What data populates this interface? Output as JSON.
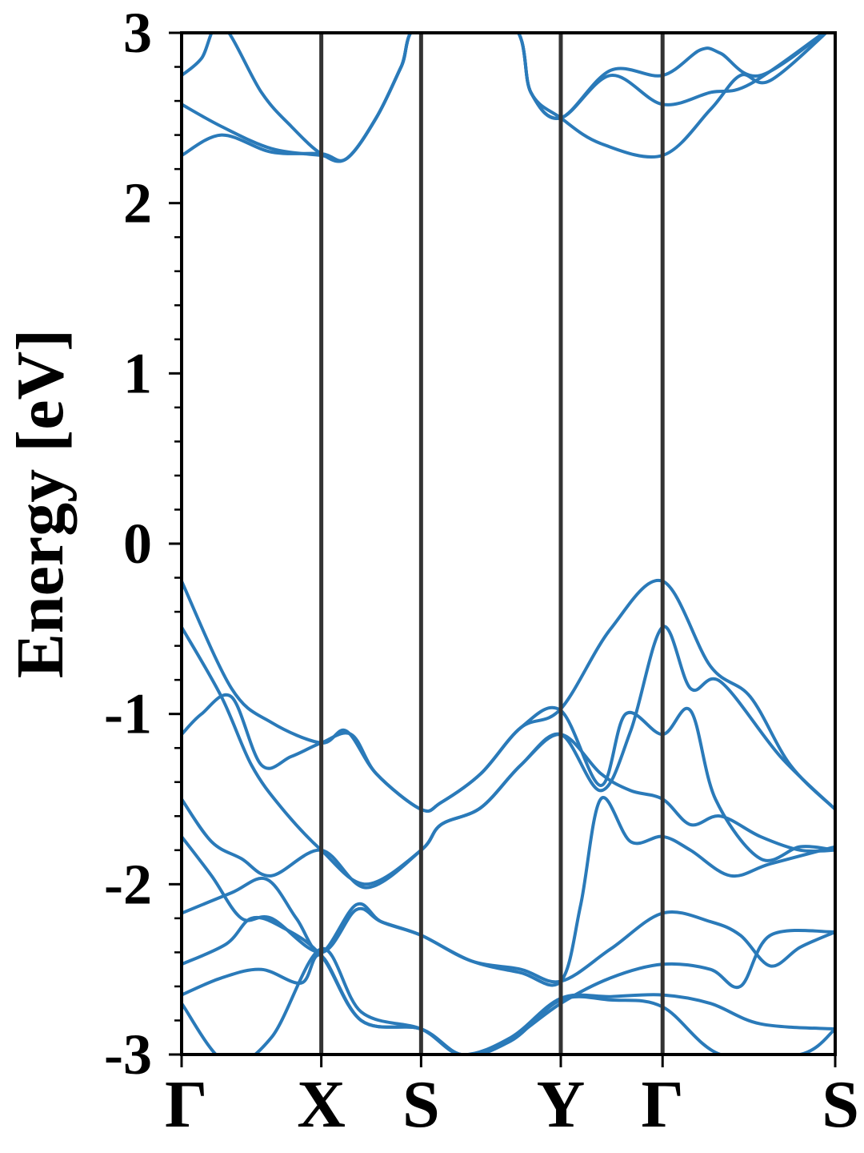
{
  "chart_data": {
    "type": "line",
    "title": "",
    "xlabel": "",
    "ylabel": "Energy [eV]",
    "ylim": [
      -3,
      3
    ],
    "yticks": [
      -3,
      -2,
      -1,
      0,
      1,
      2,
      3
    ],
    "ytick_labels": [
      "-3",
      "-2",
      "-1",
      "0",
      "1",
      "2",
      "3"
    ],
    "yminor_step": 0.2,
    "xlim": [
      0,
      6.55
    ],
    "kpoints": [
      {
        "label": "Γ",
        "x": 0
      },
      {
        "label": "X",
        "x": 1.4
      },
      {
        "label": "S",
        "x": 2.4
      },
      {
        "label": "Y",
        "x": 3.8
      },
      {
        "label": "Γ",
        "x": 4.82
      },
      {
        "label": "S",
        "x": 6.55
      }
    ],
    "grid": false,
    "legend": "none",
    "colors": {
      "bands": "#2a7ab9",
      "kpath_lines": "#333333",
      "axes": "#000000"
    },
    "series": [
      {
        "points": [
          [
            0,
            -0.22
          ],
          [
            0.5,
            -0.85
          ],
          [
            0.9,
            -1.05
          ],
          [
            1.4,
            -1.17
          ],
          [
            1.65,
            -1.1
          ],
          [
            1.95,
            -1.35
          ],
          [
            2.4,
            -1.56
          ],
          [
            2.6,
            -1.52
          ],
          [
            3.0,
            -1.35
          ],
          [
            3.4,
            -1.08
          ],
          [
            3.8,
            -0.97
          ],
          [
            4.3,
            -0.5
          ],
          [
            4.82,
            -0.22
          ],
          [
            5.3,
            -0.72
          ],
          [
            5.7,
            -0.9
          ],
          [
            6.1,
            -1.3
          ],
          [
            6.55,
            -1.56
          ]
        ]
      },
      {
        "points": [
          [
            0,
            -0.49
          ],
          [
            0.4,
            -0.9
          ],
          [
            0.7,
            -1.3
          ],
          [
            1.0,
            -1.55
          ],
          [
            1.4,
            -1.8
          ],
          [
            1.85,
            -2.0
          ],
          [
            2.4,
            -1.8
          ],
          [
            2.6,
            -1.65
          ],
          [
            3.0,
            -1.55
          ],
          [
            3.4,
            -1.3
          ],
          [
            3.8,
            -1.12
          ],
          [
            4.2,
            -1.45
          ],
          [
            4.5,
            -1.1
          ],
          [
            4.82,
            -0.49
          ],
          [
            5.1,
            -0.85
          ],
          [
            5.4,
            -0.81
          ],
          [
            6.0,
            -1.25
          ],
          [
            6.55,
            -1.56
          ]
        ]
      },
      {
        "points": [
          [
            0,
            -1.12
          ],
          [
            0.2,
            -1.0
          ],
          [
            0.5,
            -0.9
          ],
          [
            0.8,
            -1.3
          ],
          [
            1.1,
            -1.25
          ],
          [
            1.4,
            -1.17
          ],
          [
            1.7,
            -1.12
          ],
          [
            1.95,
            -1.35
          ],
          [
            2.4,
            -1.56
          ],
          [
            2.6,
            -1.52
          ],
          [
            3.0,
            -1.35
          ],
          [
            3.4,
            -1.08
          ],
          [
            3.8,
            -0.98
          ],
          [
            4.2,
            -1.42
          ],
          [
            4.45,
            -1.0
          ],
          [
            4.82,
            -1.12
          ],
          [
            5.1,
            -0.98
          ],
          [
            5.35,
            -1.5
          ],
          [
            5.8,
            -1.85
          ],
          [
            6.2,
            -1.78
          ],
          [
            6.55,
            -1.8
          ]
        ]
      },
      {
        "points": [
          [
            0,
            -1.5
          ],
          [
            0.3,
            -1.75
          ],
          [
            0.6,
            -1.85
          ],
          [
            0.9,
            -1.95
          ],
          [
            1.4,
            -1.8
          ],
          [
            1.85,
            -2.02
          ],
          [
            2.4,
            -1.8
          ],
          [
            2.6,
            -1.65
          ],
          [
            3.0,
            -1.55
          ],
          [
            3.4,
            -1.3
          ],
          [
            3.8,
            -1.12
          ],
          [
            4.2,
            -1.35
          ],
          [
            4.5,
            -1.45
          ],
          [
            4.82,
            -1.5
          ],
          [
            5.1,
            -1.65
          ],
          [
            5.4,
            -1.6
          ],
          [
            5.8,
            -1.72
          ],
          [
            6.2,
            -1.8
          ],
          [
            6.55,
            -1.8
          ]
        ]
      },
      {
        "points": [
          [
            0,
            -1.72
          ],
          [
            0.3,
            -1.95
          ],
          [
            0.6,
            -2.2
          ],
          [
            0.9,
            -2.2
          ],
          [
            1.4,
            -2.4
          ],
          [
            1.75,
            -2.15
          ],
          [
            2.0,
            -2.22
          ],
          [
            2.4,
            -2.3
          ],
          [
            2.9,
            -2.45
          ],
          [
            3.4,
            -2.52
          ],
          [
            3.8,
            -2.57
          ],
          [
            4.0,
            -2.12
          ],
          [
            4.2,
            -1.5
          ],
          [
            4.5,
            -1.75
          ],
          [
            4.82,
            -1.72
          ],
          [
            5.1,
            -1.8
          ],
          [
            5.5,
            -1.95
          ],
          [
            5.9,
            -1.88
          ],
          [
            6.55,
            -1.78
          ]
        ]
      },
      {
        "points": [
          [
            0,
            -2.17
          ],
          [
            0.5,
            -2.05
          ],
          [
            0.85,
            -1.97
          ],
          [
            1.15,
            -2.2
          ],
          [
            1.4,
            -2.4
          ],
          [
            1.75,
            -2.12
          ],
          [
            2.0,
            -2.22
          ],
          [
            2.4,
            -2.3
          ],
          [
            2.9,
            -2.45
          ],
          [
            3.4,
            -2.5
          ],
          [
            3.8,
            -2.57
          ],
          [
            4.3,
            -2.38
          ],
          [
            4.82,
            -2.17
          ],
          [
            5.3,
            -2.22
          ],
          [
            5.6,
            -2.3
          ],
          [
            5.9,
            -2.48
          ],
          [
            6.2,
            -2.37
          ],
          [
            6.55,
            -2.28
          ]
        ]
      },
      {
        "points": [
          [
            0,
            -2.47
          ],
          [
            0.45,
            -2.35
          ],
          [
            0.7,
            -2.2
          ],
          [
            1.0,
            -2.25
          ],
          [
            1.4,
            -2.42
          ],
          [
            1.8,
            -2.8
          ],
          [
            2.4,
            -2.85
          ],
          [
            2.8,
            -3.0
          ],
          [
            3.2,
            -2.95
          ],
          [
            3.8,
            -2.7
          ],
          [
            4.3,
            -2.55
          ],
          [
            4.82,
            -2.47
          ],
          [
            5.3,
            -2.5
          ],
          [
            5.6,
            -2.6
          ],
          [
            5.9,
            -2.3
          ],
          [
            6.55,
            -2.28
          ]
        ]
      },
      {
        "points": [
          [
            0,
            -2.65
          ],
          [
            0.4,
            -2.55
          ],
          [
            0.8,
            -2.5
          ],
          [
            1.2,
            -2.58
          ],
          [
            1.4,
            -2.42
          ],
          [
            1.8,
            -2.8
          ],
          [
            2.4,
            -2.85
          ],
          [
            2.8,
            -3.0
          ],
          [
            3.3,
            -2.9
          ],
          [
            3.8,
            -2.67
          ],
          [
            4.3,
            -2.66
          ],
          [
            4.82,
            -2.65
          ],
          [
            5.3,
            -2.7
          ],
          [
            5.8,
            -2.82
          ],
          [
            6.55,
            -2.85
          ]
        ]
      },
      {
        "points": [
          [
            0,
            -2.7
          ],
          [
            0.45,
            -3.05
          ],
          [
            0.9,
            -2.9
          ],
          [
            1.4,
            -2.38
          ],
          [
            1.8,
            -2.75
          ],
          [
            2.4,
            -2.85
          ],
          [
            2.8,
            -3.0
          ],
          [
            3.3,
            -2.92
          ],
          [
            3.8,
            -2.68
          ],
          [
            4.3,
            -2.68
          ],
          [
            4.82,
            -2.72
          ],
          [
            5.4,
            -3.0
          ],
          [
            6.2,
            -3.0
          ],
          [
            6.55,
            -2.85
          ]
        ]
      },
      {
        "points": [
          [
            0,
            2.28
          ],
          [
            0.4,
            2.4
          ],
          [
            0.9,
            2.3
          ],
          [
            1.4,
            2.29
          ],
          [
            1.65,
            2.26
          ],
          [
            1.95,
            2.5
          ],
          [
            2.2,
            2.8
          ],
          [
            2.4,
            3.05
          ],
          [
            3.3,
            3.05
          ],
          [
            3.5,
            2.65
          ],
          [
            3.8,
            2.5
          ],
          [
            4.2,
            2.35
          ],
          [
            4.82,
            2.28
          ],
          [
            5.3,
            2.55
          ],
          [
            5.6,
            2.75
          ],
          [
            5.9,
            2.72
          ],
          [
            6.55,
            3.05
          ]
        ]
      },
      {
        "points": [
          [
            0,
            2.58
          ],
          [
            0.4,
            2.45
          ],
          [
            0.9,
            2.32
          ],
          [
            1.4,
            2.28
          ],
          [
            1.65,
            2.26
          ],
          [
            1.95,
            2.5
          ],
          [
            2.2,
            2.8
          ],
          [
            2.4,
            3.05
          ],
          [
            3.3,
            3.05
          ],
          [
            3.5,
            2.65
          ],
          [
            3.8,
            2.5
          ],
          [
            4.3,
            2.75
          ],
          [
            4.82,
            2.58
          ],
          [
            5.3,
            2.65
          ],
          [
            5.7,
            2.7
          ],
          [
            6.55,
            3.05
          ]
        ]
      },
      {
        "points": [
          [
            0,
            2.75
          ],
          [
            0.2,
            2.85
          ],
          [
            0.4,
            3.05
          ],
          [
            0.8,
            2.65
          ],
          [
            1.1,
            2.45
          ],
          [
            1.4,
            2.29
          ],
          [
            1.65,
            2.26
          ],
          [
            1.95,
            2.5
          ],
          [
            2.2,
            2.8
          ],
          [
            2.4,
            3.05
          ],
          [
            3.3,
            3.05
          ],
          [
            3.5,
            2.65
          ],
          [
            3.8,
            2.5
          ],
          [
            4.3,
            2.78
          ],
          [
            4.82,
            2.75
          ],
          [
            5.2,
            2.9
          ],
          [
            5.4,
            2.88
          ],
          [
            5.8,
            2.75
          ],
          [
            6.55,
            3.05
          ]
        ]
      }
    ]
  }
}
